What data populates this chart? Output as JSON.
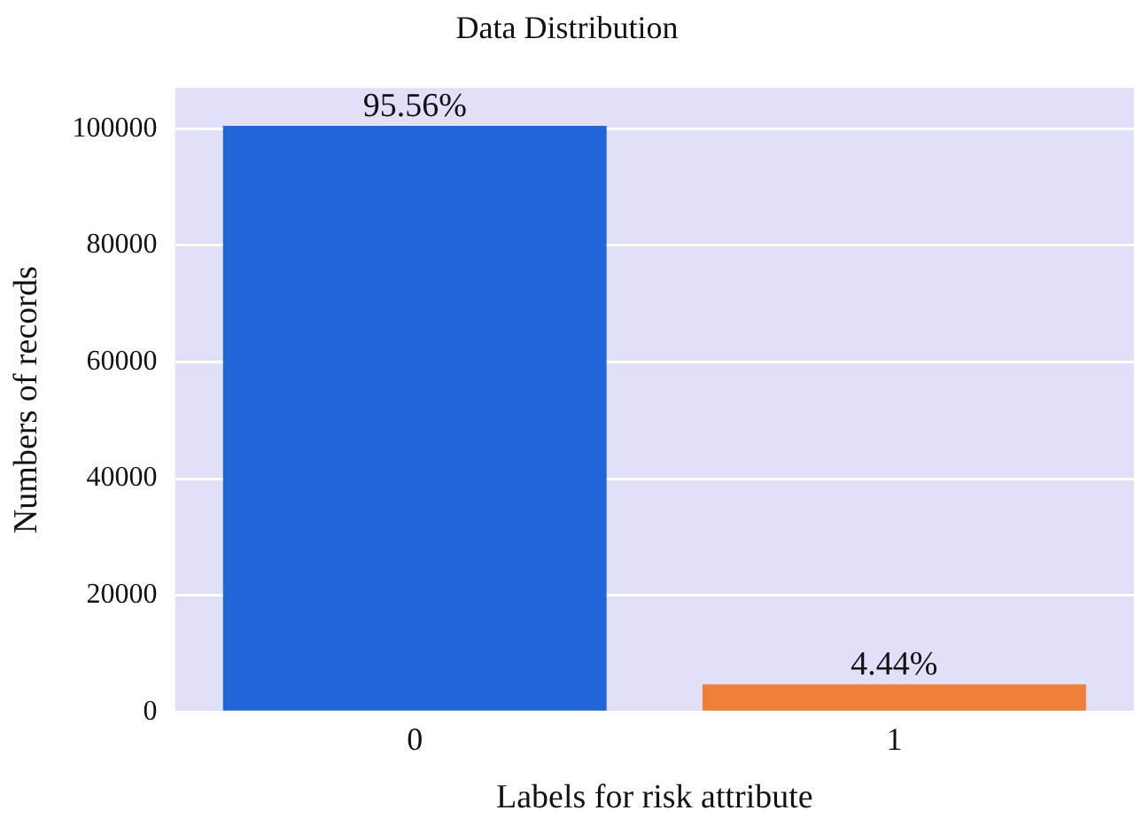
{
  "chart_data": {
    "type": "bar",
    "title": "Data Distribution",
    "xlabel": "Labels for risk attribute",
    "ylabel": "Numbers of records",
    "categories": [
      "0",
      "1"
    ],
    "values": [
      100500,
      4700
    ],
    "colors": [
      "#2166d9",
      "#f07f3a"
    ],
    "annotations": [
      {
        "text": "95.56%",
        "x": "0",
        "y": 100500
      },
      {
        "text": "4.44%",
        "x": "1",
        "y": 4700
      }
    ],
    "ylim": [
      0,
      107000
    ],
    "yticks": [
      0,
      20000,
      40000,
      60000,
      80000,
      100000
    ],
    "grid": "y"
  }
}
